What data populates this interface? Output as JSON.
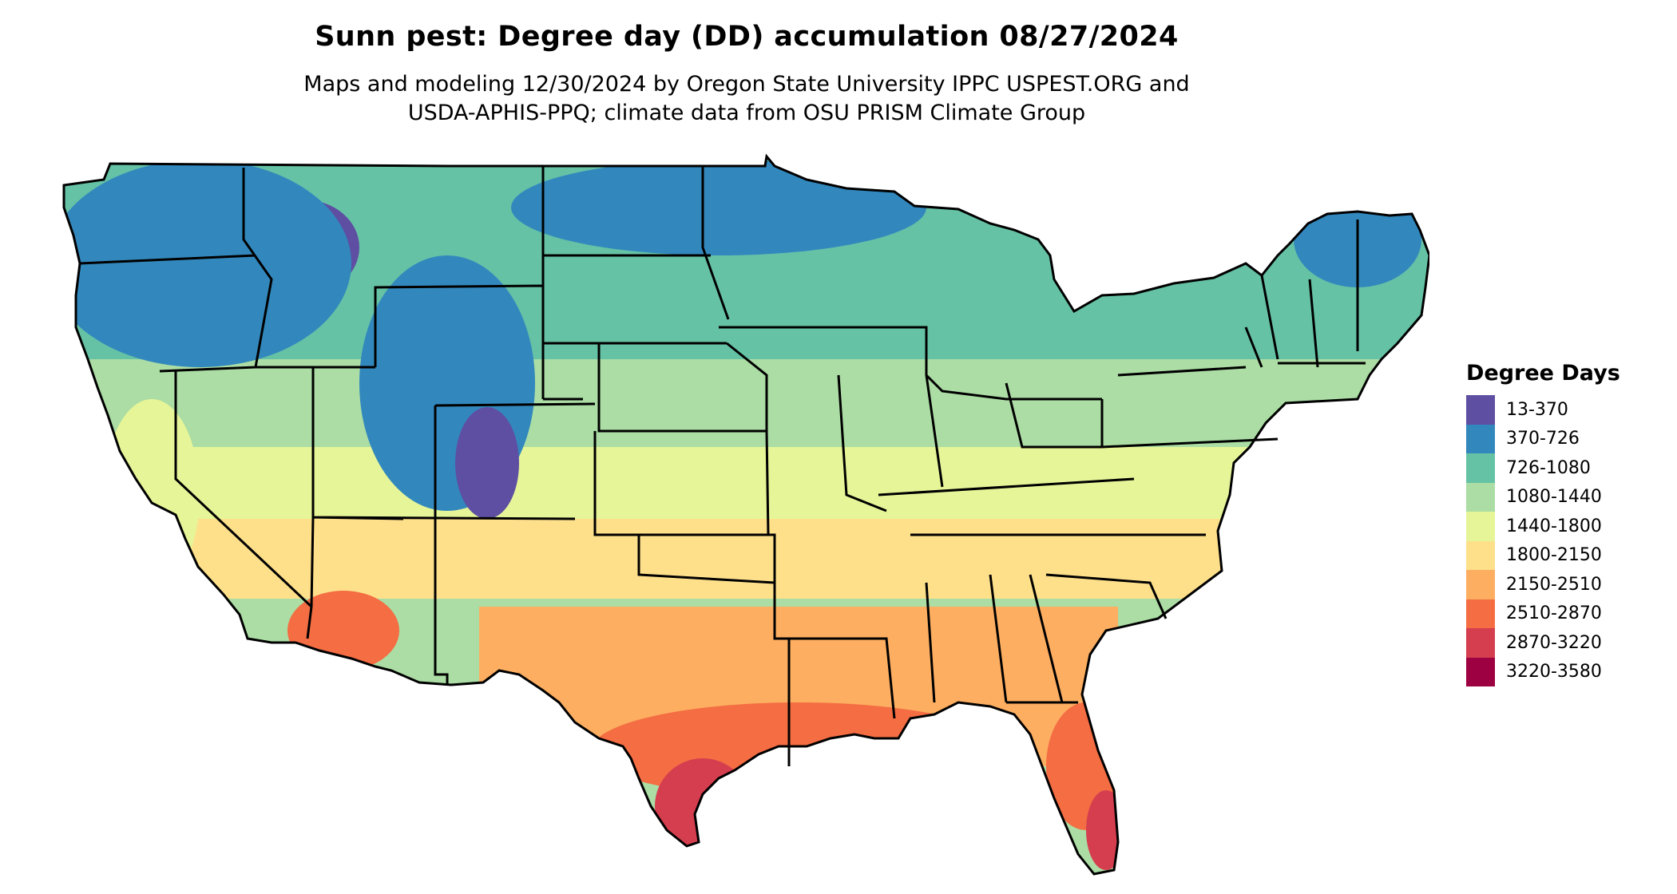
{
  "title": "Sunn pest: Degree day (DD) accumulation 08/27/2024",
  "subtitle_lines": [
    "Maps and modeling 12/30/2024 by Oregon State University IPPC USPEST.ORG and",
    "USDA-APHIS-PPQ; climate data from OSU PRISM Climate Group"
  ],
  "legend": {
    "title": "Degree Days",
    "items": [
      {
        "label": "13-370",
        "color": "#5e4fa2"
      },
      {
        "label": "370-726",
        "color": "#3288bd"
      },
      {
        "label": "726-1080",
        "color": "#66c2a5"
      },
      {
        "label": "1080-1440",
        "color": "#abdda4"
      },
      {
        "label": "1440-1800",
        "color": "#e6f598"
      },
      {
        "label": "1800-2150",
        "color": "#fee08b"
      },
      {
        "label": "2150-2510",
        "color": "#fdae61"
      },
      {
        "label": "2510-2870",
        "color": "#f46d43"
      },
      {
        "label": "2870-3220",
        "color": "#d53e4f"
      },
      {
        "label": "3220-3580",
        "color": "#9e0142"
      }
    ]
  }
}
